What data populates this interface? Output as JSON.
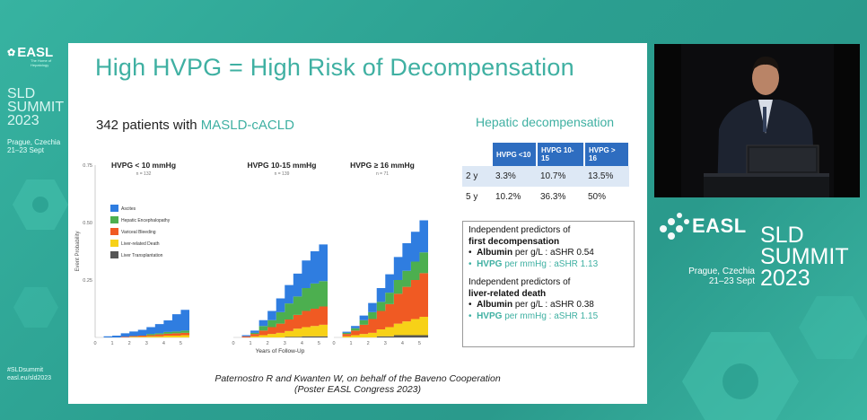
{
  "sidebar": {
    "logo": "EASL",
    "logo_tagline": "The Home of Hepatology",
    "summit_lines": [
      "SLD",
      "SUMMIT",
      "2023"
    ],
    "location_lines": [
      "Prague, Czechia",
      "21–23 Sept"
    ],
    "hashtag_lines": [
      "#SLDsummit",
      "easl.eu/sld2023"
    ]
  },
  "slide": {
    "title": "High HVPG = High Risk of Decompensation",
    "patients_prefix": "342 patients with ",
    "patients_highlight": "MASLD-cACLD",
    "table_title": "Hepatic decompensation",
    "table": {
      "headers": [
        "",
        "HVPG <10",
        "HVPG 10-15",
        "HVPG > 16"
      ],
      "rows": [
        [
          "2 y",
          "3.3%",
          "10.7%",
          "13.5%"
        ],
        [
          "5 y",
          "10.2%",
          "36.3%",
          "50%"
        ]
      ]
    },
    "predictors": {
      "group1_title": "Independent predictors of",
      "group1_bold": "first decompensation",
      "group1_items": [
        {
          "bullet": "•",
          "name": "Albumin",
          "text": " per g/L : aSHR 0.54",
          "color": "#111111"
        },
        {
          "bullet": "•",
          "name": "HVPG",
          "text": " per mmHg : aSHR 1.13",
          "color": "#3fb0a2"
        }
      ],
      "group2_title": "Independent predictors of",
      "group2_bold": "liver-related death",
      "group2_items": [
        {
          "bullet": "•",
          "name": "Albumin",
          "text": " per g/L : aSHR 0.38",
          "color": "#111111"
        },
        {
          "bullet": "•",
          "name": "HVPG",
          "text": " per mmHg : aSHR 1.15",
          "color": "#3fb0a2"
        }
      ]
    },
    "citation_line1": "Paternostro R and Kwanten W, on behalf of the Baveno Cooperation",
    "citation_line2": "(Poster EASL Congress 2023)"
  },
  "right_brand": {
    "easl": "EASL",
    "summit_lines": [
      "SLD",
      "SUMMIT",
      "2023"
    ],
    "location_lines": [
      "Prague, Czechia",
      "21–23 Sept"
    ]
  },
  "chart_data": {
    "type": "area",
    "ylabel": "Event Probability",
    "xlabel": "Years of Follow-Up",
    "ylim": [
      0,
      0.75
    ],
    "yticks": [
      "0.75",
      "0.50",
      "0.25"
    ],
    "xlim": [
      0,
      5.5
    ],
    "xticks": [
      "0",
      "1",
      "2",
      "3",
      "4",
      "5"
    ],
    "legend": [
      {
        "name": "Ascites",
        "color": "#2f7de0"
      },
      {
        "name": "Hepatic Encephalopathy",
        "color": "#4caf4f"
      },
      {
        "name": "Variceal Bleeding",
        "color": "#f05a23"
      },
      {
        "name": "Liver-related Death",
        "color": "#f7d117"
      },
      {
        "name": "Liver Transplantation",
        "color": "#555555"
      }
    ],
    "panels": [
      {
        "title": "HVPG < 10 mmHg",
        "n": "n = 132",
        "x": [
          0,
          0.5,
          1,
          1.5,
          2,
          2.5,
          3,
          3.5,
          4,
          4.5,
          5,
          5.5
        ],
        "series": [
          {
            "name": "Liver Transplantation",
            "values": [
              0,
              0,
              0,
              0,
              0,
              0,
              0,
              0,
              0,
              0,
              0,
              0
            ]
          },
          {
            "name": "Liver-related Death",
            "values": [
              0,
              0,
              0,
              0,
              0.003,
              0.003,
              0.005,
              0.005,
              0.008,
              0.008,
              0.01,
              0.01
            ]
          },
          {
            "name": "Variceal Bleeding",
            "values": [
              0,
              0,
              0,
              0.003,
              0.003,
              0.005,
              0.005,
              0.008,
              0.008,
              0.01,
              0.01,
              0.01
            ]
          },
          {
            "name": "Hepatic Encephalopathy",
            "values": [
              0,
              0,
              0,
              0,
              0,
              0,
              0.005,
              0.005,
              0.008,
              0.008,
              0.01,
              0.01
            ]
          },
          {
            "name": "Ascites",
            "values": [
              0,
              0.005,
              0.008,
              0.015,
              0.02,
              0.025,
              0.03,
              0.04,
              0.05,
              0.075,
              0.09,
              0.09
            ]
          }
        ]
      },
      {
        "title": "HVPG 10-15 mmHg",
        "n": "n = 139",
        "x": [
          0,
          0.5,
          1,
          1.5,
          2,
          2.5,
          3,
          3.5,
          4,
          4.5,
          5,
          5.5
        ],
        "series": [
          {
            "name": "Liver Transplantation",
            "values": [
              0,
              0,
              0,
              0,
              0,
              0,
              0.003,
              0.003,
              0.005,
              0.005,
              0.005,
              0.005
            ]
          },
          {
            "name": "Liver-related Death",
            "values": [
              0,
              0,
              0.005,
              0.01,
              0.015,
              0.02,
              0.025,
              0.035,
              0.04,
              0.045,
              0.05,
              0.05
            ]
          },
          {
            "name": "Variceal Bleeding",
            "values": [
              0,
              0.005,
              0.01,
              0.02,
              0.03,
              0.04,
              0.05,
              0.06,
              0.07,
              0.075,
              0.08,
              0.08
            ]
          },
          {
            "name": "Hepatic Encephalopathy",
            "values": [
              0,
              0,
              0.005,
              0.02,
              0.03,
              0.05,
              0.07,
              0.08,
              0.1,
              0.11,
              0.11,
              0.11
            ]
          },
          {
            "name": "Ascites",
            "values": [
              0,
              0.005,
              0.01,
              0.025,
              0.04,
              0.06,
              0.08,
              0.1,
              0.12,
              0.14,
              0.16,
              0.16
            ]
          }
        ]
      },
      {
        "title": "HVPG ≥ 16 mmHg",
        "n": "n = 71",
        "x": [
          0,
          0.5,
          1,
          1.5,
          2,
          2.5,
          3,
          3.5,
          4,
          4.5,
          5,
          5.5
        ],
        "series": [
          {
            "name": "Liver Transplantation",
            "values": [
              0,
              0,
              0,
              0,
              0,
              0.005,
              0.005,
              0.01,
              0.01,
              0.01,
              0.01,
              0.01
            ]
          },
          {
            "name": "Liver-related Death",
            "values": [
              0,
              0.005,
              0.01,
              0.015,
              0.02,
              0.03,
              0.04,
              0.05,
              0.06,
              0.07,
              0.08,
              0.09
            ]
          },
          {
            "name": "Variceal Bleeding",
            "values": [
              0,
              0.01,
              0.02,
              0.04,
              0.06,
              0.08,
              0.1,
              0.13,
              0.15,
              0.17,
              0.19,
              0.2
            ]
          },
          {
            "name": "Hepatic Encephalopathy",
            "values": [
              0,
              0.005,
              0.01,
              0.02,
              0.03,
              0.04,
              0.05,
              0.06,
              0.07,
              0.08,
              0.09,
              0.1
            ]
          },
          {
            "name": "Ascites",
            "values": [
              0,
              0.005,
              0.01,
              0.02,
              0.04,
              0.06,
              0.08,
              0.1,
              0.12,
              0.13,
              0.14,
              0.15
            ]
          }
        ]
      }
    ]
  }
}
